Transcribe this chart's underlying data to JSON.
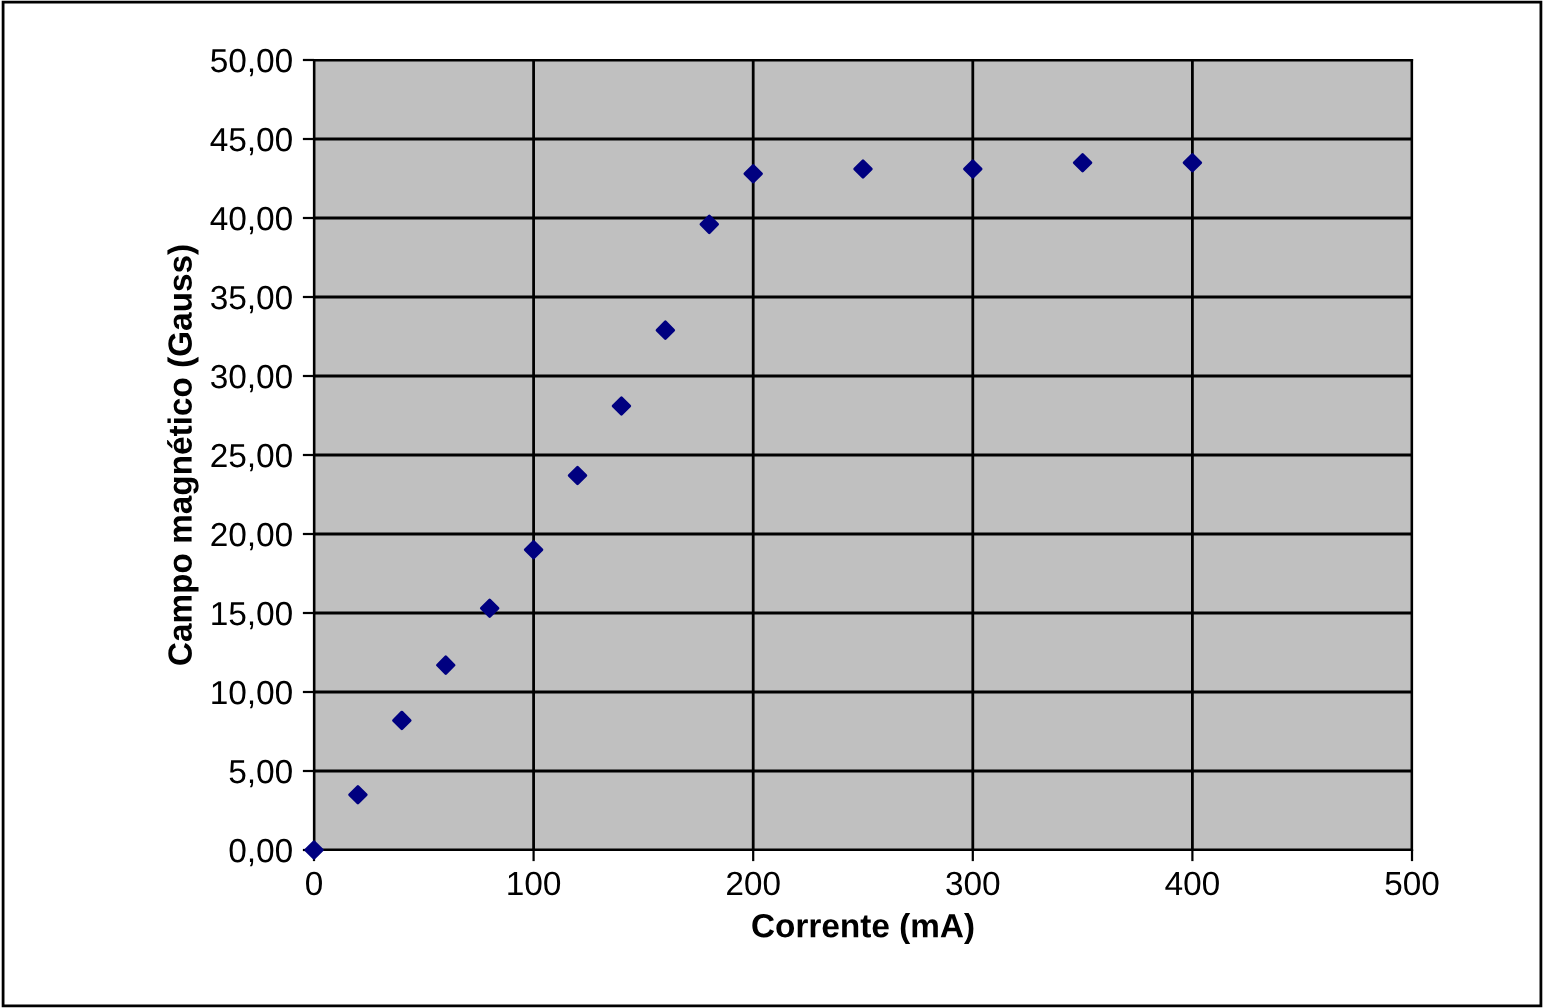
{
  "chart_data": {
    "type": "scatter",
    "xlabel": "Corrente (mA)",
    "ylabel": "Campo magnético (Gauss)",
    "x": [
      0,
      20,
      40,
      60,
      80,
      100,
      120,
      140,
      160,
      180,
      200,
      250,
      300,
      350,
      400
    ],
    "series": [
      {
        "color": "#000080",
        "values": [
          0,
          3.5,
          8.2,
          11.7,
          15.3,
          19.0,
          23.7,
          28.1,
          32.9,
          39.6,
          42.8,
          43.1,
          43.1,
          43.5,
          43.5
        ]
      }
    ],
    "marker": "diamond",
    "grid": true,
    "xlim": [
      0,
      500
    ],
    "xticks": [
      0,
      100,
      200,
      300,
      400,
      500
    ],
    "ylim": [
      0,
      50
    ],
    "yticks": [
      {
        "value": 0,
        "label": "0,00"
      },
      {
        "value": 5,
        "label": "5,00"
      },
      {
        "value": 10,
        "label": "10,00"
      },
      {
        "value": 15,
        "label": "15,00"
      },
      {
        "value": 20,
        "label": "20,00"
      },
      {
        "value": 25,
        "label": "25,00"
      },
      {
        "value": 30,
        "label": "30,00"
      },
      {
        "value": 35,
        "label": "35,00"
      },
      {
        "value": 40,
        "label": "40,00"
      },
      {
        "value": 45,
        "label": "45,00"
      },
      {
        "value": 50,
        "label": "50,00"
      }
    ]
  }
}
